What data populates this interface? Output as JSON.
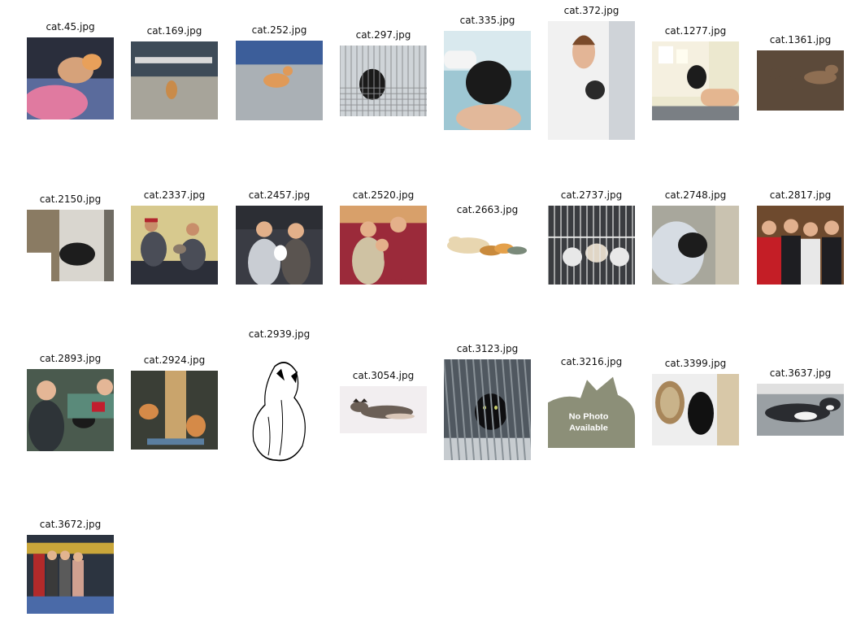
{
  "thumbnails": [
    {
      "filename": "cat.45.jpg",
      "scene": "kitten-blanket",
      "colors": [
        "#2a2e3c",
        "#5a6b9c",
        "#e07aa0",
        "#d6a27a"
      ]
    },
    {
      "filename": "cat.169.jpg",
      "scene": "shelter-room",
      "colors": [
        "#6f7472",
        "#a7a49a",
        "#3e4b58",
        "#c98b4a"
      ]
    },
    {
      "filename": "cat.252.jpg",
      "scene": "orange-cat-floor",
      "colors": [
        "#7a7e84",
        "#aab0b5",
        "#3c5e9a",
        "#e09a58"
      ]
    },
    {
      "filename": "cat.297.jpg",
      "scene": "black-cat-cage",
      "colors": [
        "#e9ecef",
        "#cfd4d8",
        "#1a1a1a",
        "#8e8f92"
      ]
    },
    {
      "filename": "cat.335.jpg",
      "scene": "bottle-feeding",
      "colors": [
        "#9ec7d3",
        "#d9e9ee",
        "#1a1a1a",
        "#e2b89a"
      ]
    },
    {
      "filename": "cat.372.jpg",
      "scene": "woman-kitten",
      "colors": [
        "#d8dbe0",
        "#f1f1f1",
        "#2a2a2a",
        "#e3b596"
      ]
    },
    {
      "filename": "cat.1277.jpg",
      "scene": "hand-black-cat",
      "colors": [
        "#ece8cf",
        "#d8d1a8",
        "#1c1c1c",
        "#e4b690"
      ]
    },
    {
      "filename": "cat.1361.jpg",
      "scene": "two-cats-rug",
      "colors": [
        "#eeeeee",
        "#c7b8a3",
        "#5c4a3a",
        "#8e6e52"
      ]
    },
    {
      "filename": "cat.2150.jpg",
      "scene": "black-cat-corner",
      "colors": [
        "#d9d6cf",
        "#8a7b63",
        "#1d1d1d",
        "#6f6b63"
      ]
    },
    {
      "filename": "cat.2337.jpg",
      "scene": "two-people-floor",
      "colors": [
        "#d7c98e",
        "#4a4d57",
        "#2c2f39",
        "#c88e6a"
      ]
    },
    {
      "filename": "cat.2457.jpg",
      "scene": "couple-holding-cat",
      "colors": [
        "#3a3c44",
        "#c9cdd3",
        "#5a5450",
        "#e2b08a"
      ]
    },
    {
      "filename": "cat.2520.jpg",
      "scene": "family-store",
      "colors": [
        "#4b5a76",
        "#cfc2a3",
        "#9b2a3a",
        "#e4b08a"
      ]
    },
    {
      "filename": "cat.2663.jpg",
      "scene": "kittens-drawing",
      "colors": [
        "#ffffff",
        "#c98a3c",
        "#7a8a7a",
        "#e8d6b0"
      ]
    },
    {
      "filename": "cat.2737.jpg",
      "scene": "kittens-cage",
      "colors": [
        "#cfd3d8",
        "#3a3c40",
        "#e8e8e8",
        "#8a8d91"
      ]
    },
    {
      "filename": "cat.2748.jpg",
      "scene": "man-black-cat",
      "colors": [
        "#a8a79c",
        "#d6dce3",
        "#1c1c1c",
        "#6e6a5e"
      ]
    },
    {
      "filename": "cat.2817.jpg",
      "scene": "group-photo",
      "colors": [
        "#6e4a2e",
        "#c41e26",
        "#1e1e22",
        "#e1b08e"
      ]
    },
    {
      "filename": "cat.2893.jpg",
      "scene": "boy-with-cat",
      "colors": [
        "#2e3438",
        "#5a8a7a",
        "#1a1a1a",
        "#e4b696"
      ]
    },
    {
      "filename": "cat.2924.jpg",
      "scene": "scratching-post",
      "colors": [
        "#3a3e36",
        "#c9a46c",
        "#d58a48",
        "#5a7ea0"
      ]
    },
    {
      "filename": "cat.2939.jpg",
      "scene": "line-drawing",
      "colors": [
        "#ffffff",
        "#000000",
        "#ffffff",
        "#000000"
      ]
    },
    {
      "filename": "cat.3054.jpg",
      "scene": "tabby-lying",
      "colors": [
        "#f2eef0",
        "#6b5f56",
        "#2c2622",
        "#d9c7b8"
      ]
    },
    {
      "filename": "cat.3123.jpg",
      "scene": "black-cat-bars",
      "colors": [
        "#505860",
        "#8a9298",
        "#0e0e10",
        "#c7ccd0"
      ]
    },
    {
      "filename": "cat.3216.jpg",
      "scene": "no-photo",
      "colors": [
        "#ffffff",
        "#8c8f78",
        "#ffffff",
        "#6f7260"
      ],
      "placeholder_line1": "No Photo",
      "placeholder_line2": "Available"
    },
    {
      "filename": "cat.3399.jpg",
      "scene": "black-cat-food",
      "colors": [
        "#eeeeee",
        "#a8865a",
        "#111111",
        "#c9b38a"
      ]
    },
    {
      "filename": "cat.3637.jpg",
      "scene": "tuxedo-cat",
      "colors": [
        "#9aa0a4",
        "#2a2c30",
        "#f2f2f2",
        "#5d6266"
      ]
    },
    {
      "filename": "cat.3672.jpg",
      "scene": "adoption-booth",
      "colors": [
        "#2c3440",
        "#c9a63a",
        "#4a6aa8",
        "#e2b490"
      ]
    }
  ]
}
